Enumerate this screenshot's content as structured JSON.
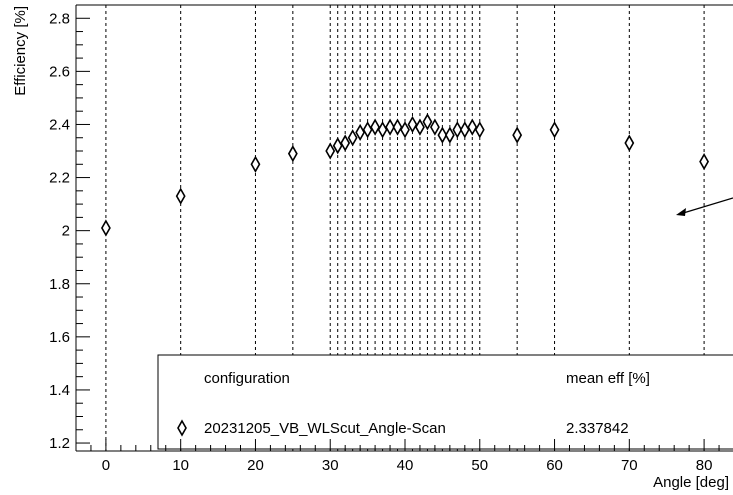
{
  "chart_data": {
    "type": "scatter",
    "xlabel": "Angle [deg]",
    "ylabel": "Efficiency [%]",
    "xlim": [
      -4,
      84
    ],
    "ylim": [
      1.17,
      2.85
    ],
    "x_ticks": [
      "0",
      "10",
      "20",
      "30",
      "40",
      "50",
      "60",
      "70",
      "80"
    ],
    "y_ticks": [
      "1.2",
      "1.4",
      "1.6",
      "1.8",
      "2",
      "2.2",
      "2.4",
      "2.6",
      "2.8"
    ],
    "marker": "open-diamond",
    "series": [
      {
        "name": "20231205_VB_WLScut_Angle-Scan",
        "mean_eff": "2.337842",
        "points": [
          {
            "x": 0,
            "y": 2.01
          },
          {
            "x": 10,
            "y": 2.13
          },
          {
            "x": 20,
            "y": 2.25
          },
          {
            "x": 25,
            "y": 2.29
          },
          {
            "x": 30,
            "y": 2.3
          },
          {
            "x": 31,
            "y": 2.32
          },
          {
            "x": 32,
            "y": 2.33
          },
          {
            "x": 33,
            "y": 2.35
          },
          {
            "x": 34,
            "y": 2.37
          },
          {
            "x": 35,
            "y": 2.38
          },
          {
            "x": 36,
            "y": 2.39
          },
          {
            "x": 37,
            "y": 2.38
          },
          {
            "x": 38,
            "y": 2.39
          },
          {
            "x": 39,
            "y": 2.39
          },
          {
            "x": 40,
            "y": 2.38
          },
          {
            "x": 41,
            "y": 2.4
          },
          {
            "x": 42,
            "y": 2.39
          },
          {
            "x": 43,
            "y": 2.41
          },
          {
            "x": 44,
            "y": 2.39
          },
          {
            "x": 45,
            "y": 2.36
          },
          {
            "x": 46,
            "y": 2.36
          },
          {
            "x": 47,
            "y": 2.38
          },
          {
            "x": 48,
            "y": 2.38
          },
          {
            "x": 49,
            "y": 2.39
          },
          {
            "x": 50,
            "y": 2.38
          },
          {
            "x": 55,
            "y": 2.36
          },
          {
            "x": 60,
            "y": 2.38
          },
          {
            "x": 70,
            "y": 2.33
          },
          {
            "x": 80,
            "y": 2.26
          }
        ]
      }
    ],
    "legend": {
      "position": "bottom-right",
      "header_config": "configuration",
      "header_mean": "mean eff [%]"
    },
    "grid_x": true,
    "grid_y": false
  }
}
